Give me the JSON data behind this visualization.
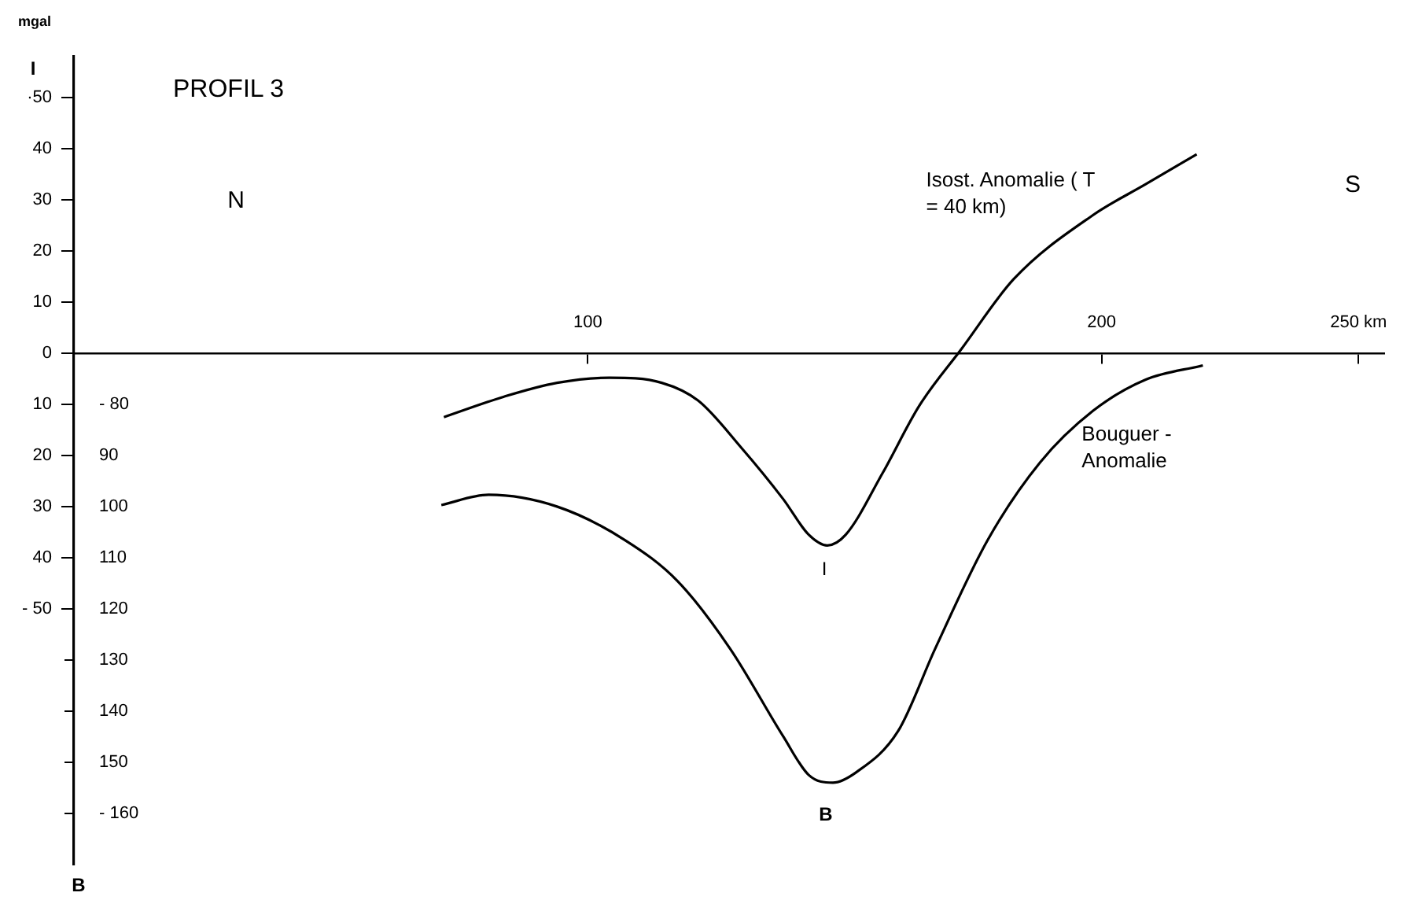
{
  "chart_data": {
    "type": "line",
    "title": "PROFIL 3",
    "ylabel": "I",
    "annotations": [
      "mgal",
      "N",
      "S",
      "I",
      "B",
      "B"
    ],
    "xlim": [
      0,
      255
    ],
    "xticks": [
      100,
      200,
      {
        "value": 250,
        "label": "250 km"
      }
    ],
    "ylim": [
      -100,
      58
    ],
    "yticks": [
      {
        "value": 50,
        "label": "·50"
      },
      40,
      30,
      20,
      10,
      0,
      {
        "value": -10,
        "label": "10"
      },
      {
        "value": -20,
        "label": "20"
      },
      {
        "value": -30,
        "label": "30"
      },
      {
        "value": -40,
        "label": "40"
      },
      {
        "value": -50,
        "label": "- 50"
      }
    ],
    "y2lim": [
      -170,
      -12
    ],
    "y2ticks": [
      {
        "value": -80,
        "label": "- 80"
      },
      {
        "value": -90,
        "label": "90"
      },
      {
        "value": -100,
        "label": "100"
      },
      {
        "value": -110,
        "label": "110"
      },
      {
        "value": -120,
        "label": "120"
      },
      {
        "value": -130,
        "label": "130"
      },
      {
        "value": -140,
        "label": "140"
      },
      {
        "value": -150,
        "label": "150"
      },
      {
        "value": -160,
        "label": "- 160"
      }
    ],
    "series": [
      {
        "name": "Isost. Anomalie ( T = 40 km)",
        "color": "#000000",
        "x": [
          72,
          83.7,
          94,
          104.2,
          114.4,
          121.5,
          129.8,
          138,
          143,
          146.6,
          150.2,
          157.4,
          164.5,
          172.7,
          182.9,
          198.3,
          208.5,
          218.5
        ],
        "values": [
          -12.5,
          -8.5,
          -5.8,
          -4.8,
          -5.8,
          -9.3,
          -18.4,
          -28.5,
          -35.5,
          -37.6,
          -35.5,
          -23.4,
          -10.3,
          0.8,
          14.5,
          27,
          33,
          38.9
        ]
      },
      {
        "name": "Bouguer - Anomalie",
        "color": "#000000",
        "axis": "y2",
        "x": [
          71.5,
          80.7,
          94,
          107.3,
          117.5,
          127.7,
          138,
          143,
          147.7,
          152.2,
          160.4,
          167.6,
          177.8,
          188,
          198.3,
          208.5,
          219.7
        ],
        "values": [
          -99.7,
          -97.7,
          -100,
          -106.6,
          -114.6,
          -127.8,
          -144.9,
          -152.5,
          -154,
          -152,
          -143.9,
          -127.8,
          -106.6,
          -91.4,
          -81.3,
          -75.2,
          -72.4
        ]
      }
    ]
  }
}
